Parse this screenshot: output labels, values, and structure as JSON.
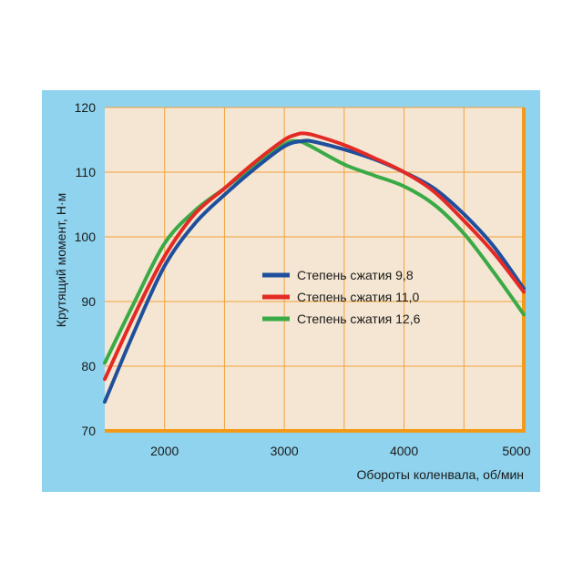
{
  "colors": {
    "frame": "#8fd3ee",
    "plot_bg": "#f4e6d2",
    "grid": "#f2a23b",
    "axis": "#f39a1a",
    "text": "#1a1a1a"
  },
  "chart_data": {
    "type": "line",
    "ylabel": "Крутящий момент, Н·м",
    "xlabel": "Обороты коленвала, об/мин",
    "xlim": [
      1500,
      5000
    ],
    "ylim": [
      70,
      120
    ],
    "x_ticks": [
      2000,
      3000,
      4000,
      5000
    ],
    "x_tick_labels": [
      "2000",
      "3000",
      "4000",
      "5000"
    ],
    "y_ticks": [
      70,
      80,
      90,
      100,
      110,
      120
    ],
    "y_tick_labels": [
      "70",
      "80",
      "90",
      "100",
      "110",
      "120"
    ],
    "grid": true,
    "legend_position": "center",
    "series": [
      {
        "name": "Степень сжатия 9,8",
        "color": "#1f4f9c",
        "x": [
          1500,
          1750,
          2000,
          2250,
          2500,
          2750,
          3000,
          3150,
          3250,
          3500,
          3750,
          4000,
          4250,
          4500,
          4750,
          5000
        ],
        "y": [
          74.5,
          85.5,
          95.5,
          102,
          106.5,
          110.5,
          114,
          114.8,
          114.7,
          113.5,
          112,
          110,
          107.5,
          103.5,
          98.5,
          92
        ]
      },
      {
        "name": "Степень сжатия 11,0",
        "color": "#e32a25",
        "x": [
          1500,
          1750,
          2000,
          2250,
          2500,
          2750,
          3000,
          3100,
          3150,
          3250,
          3500,
          3750,
          4000,
          4250,
          4500,
          4750,
          5000
        ],
        "y": [
          78,
          88,
          97,
          103.5,
          107.5,
          111.5,
          115,
          115.8,
          116,
          115.7,
          114.2,
          112.2,
          110,
          107,
          102.5,
          97.5,
          91.5
        ]
      },
      {
        "name": "Степень сжатия 12,6",
        "color": "#3aaa46",
        "x": [
          1500,
          1750,
          2000,
          2250,
          2500,
          2750,
          3000,
          3100,
          3200,
          3500,
          3750,
          4000,
          4250,
          4500,
          4750,
          5000
        ],
        "y": [
          80.5,
          90,
          99,
          104,
          107.5,
          111,
          114.3,
          114.8,
          114.2,
          111.2,
          109.5,
          107.8,
          105,
          100.5,
          94.5,
          88
        ]
      }
    ]
  }
}
